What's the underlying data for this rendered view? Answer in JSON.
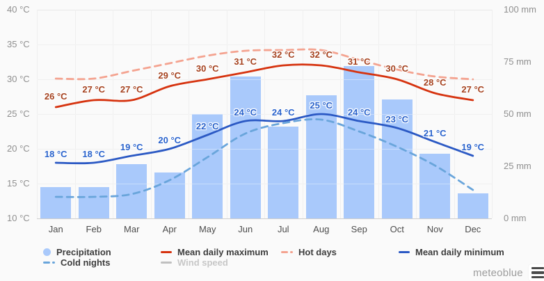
{
  "chart_data": {
    "type": "bar+line",
    "months": [
      "Jan",
      "Feb",
      "Mar",
      "Apr",
      "May",
      "Jun",
      "Jul",
      "Aug",
      "Sep",
      "Oct",
      "Nov",
      "Dec"
    ],
    "left_axis": {
      "title_unit": "°C",
      "ticks": [
        "40 °C",
        "35 °C",
        "30 °C",
        "25 °C",
        "20 °C",
        "15 °C",
        "10 °C"
      ],
      "tick_values": [
        40,
        35,
        30,
        25,
        20,
        15,
        10
      ],
      "range": [
        10,
        40
      ]
    },
    "right_axis": {
      "title_unit": "mm",
      "ticks": [
        "100 mm",
        "75 mm",
        "50 mm",
        "25 mm",
        "0 mm"
      ],
      "tick_values": [
        100,
        75,
        50,
        25,
        0
      ],
      "range": [
        0,
        100
      ]
    },
    "label_suffix": " °C",
    "series": [
      {
        "name": "Precipitation",
        "type": "bar",
        "axis": "right",
        "unit": "mm",
        "color": "#a9c9fb",
        "values": [
          15,
          15,
          26,
          22,
          50,
          68,
          44,
          59,
          73,
          57,
          31,
          12
        ]
      },
      {
        "name": "Mean daily maximum",
        "type": "line",
        "axis": "left",
        "unit": "°C",
        "color": "#d6330f",
        "label_color": "#a5421f",
        "show_point_labels": true,
        "values": [
          26,
          27,
          27,
          29,
          30,
          31,
          32,
          32,
          31,
          30,
          28,
          27
        ]
      },
      {
        "name": "Hot days",
        "type": "dashed-line",
        "axis": "left",
        "color": "#f4a390",
        "show_point_labels": false,
        "plotted_values_temp_scale": [
          30.1,
          30.1,
          31.2,
          32.3,
          33.4,
          34.1,
          34.2,
          34.2,
          32.8,
          31.4,
          30.4,
          30.0
        ]
      },
      {
        "name": "Mean daily minimum",
        "type": "line",
        "axis": "left",
        "unit": "°C",
        "color": "#2b59c4",
        "label_color": "#2a63cc",
        "show_point_labels": true,
        "values": [
          18,
          18,
          19,
          20,
          22,
          24,
          24,
          25,
          24,
          23,
          21,
          19
        ]
      },
      {
        "name": "Cold nights",
        "type": "dashed-line",
        "axis": "left",
        "color": "#69a5db",
        "show_point_labels": false,
        "plotted_values_temp_scale": [
          13.1,
          13.1,
          13.5,
          15.5,
          18.8,
          22.2,
          23.7,
          24.2,
          22.5,
          20.3,
          17.6,
          14.1
        ]
      },
      {
        "name": "Wind speed",
        "type": "line",
        "axis": "left",
        "color": "#bdbdbd",
        "visible": false,
        "show_point_labels": false,
        "plotted_values_temp_scale": []
      }
    ],
    "grid": true,
    "legend_position": "bottom"
  },
  "legend": {
    "rows": [
      [
        {
          "label": "Precipitation",
          "marker": "circle",
          "color": "#a9c9fb",
          "enabled": true
        },
        {
          "label": "Mean daily maximum",
          "marker": "line",
          "color": "#d6330f",
          "enabled": true
        },
        {
          "label": "Hot days",
          "marker": "dash",
          "color": "#f4a390",
          "enabled": true
        },
        {
          "label": "Mean daily minimum",
          "marker": "line",
          "color": "#2b59c4",
          "enabled": true
        }
      ],
      [
        {
          "label": "Cold nights",
          "marker": "dash",
          "color": "#69a5db",
          "enabled": true
        },
        {
          "label": "Wind speed",
          "marker": "line",
          "color": "#c0c0c0",
          "enabled": false
        }
      ]
    ]
  },
  "branding": {
    "logo_text": "meteoblue"
  }
}
